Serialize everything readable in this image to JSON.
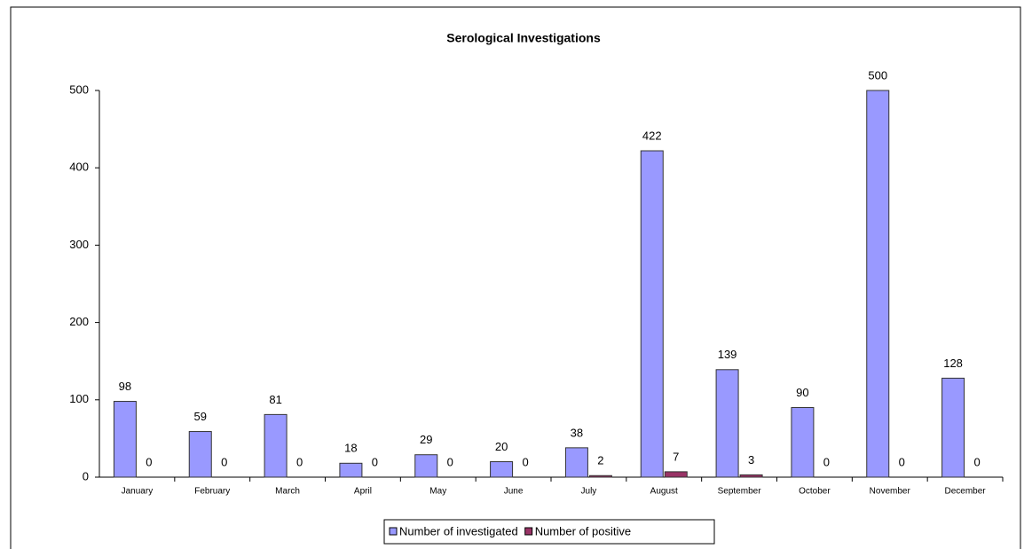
{
  "chart_data": {
    "type": "bar",
    "title": "Serological Investigations",
    "categories": [
      "January",
      "February",
      "March",
      "April",
      "May",
      "June",
      "July",
      "August",
      "September",
      "October",
      "November",
      "December"
    ],
    "series": [
      {
        "name": "Number of investigated",
        "color": "#9999ff",
        "values": [
          98,
          59,
          81,
          18,
          29,
          20,
          38,
          422,
          139,
          90,
          500,
          128
        ]
      },
      {
        "name": "Number of positive",
        "color": "#993366",
        "values": [
          0,
          0,
          0,
          0,
          0,
          0,
          2,
          7,
          3,
          0,
          0,
          0
        ]
      }
    ],
    "ylim": [
      0,
      500
    ],
    "yticks": [
      0,
      100,
      200,
      300,
      400,
      500
    ],
    "grid": false,
    "legend": "bottom"
  }
}
